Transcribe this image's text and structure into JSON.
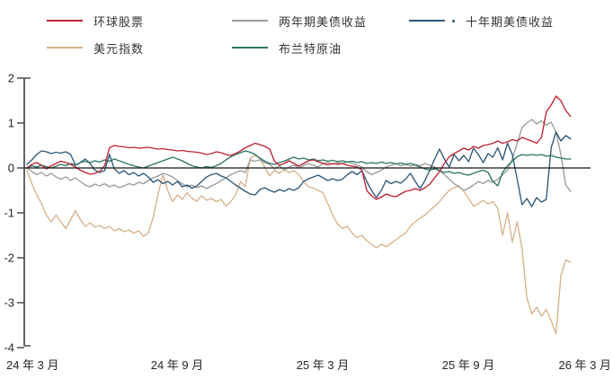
{
  "legend": {
    "items": [
      {
        "label": "环球股票",
        "color": "#bd2331",
        "column": 0,
        "style": "line",
        "key": "global-equities"
      },
      {
        "label": "美元指数",
        "color": "#d7b28c",
        "column": 0,
        "style": "line",
        "key": "usd-index"
      },
      {
        "label": "两年期美债收益",
        "color": "#9c9c9c",
        "column": 1,
        "style": "line",
        "key": "us-2y-treasury-yield"
      },
      {
        "label": "布兰特原油",
        "color": "#2b7466",
        "column": 1,
        "style": "line",
        "key": "brent-crude"
      },
      {
        "label": "十年期美债收益",
        "color": "#2e5878",
        "column": 2,
        "style": "line-dot",
        "key": "us-10y-treasury-yield"
      }
    ]
  },
  "chart_data": {
    "type": "line",
    "title": "",
    "xlabel": "",
    "ylabel": "",
    "grid": false,
    "zero_line": true,
    "legend_position": "top",
    "x_axis": {
      "labels": [
        "24 年 3 月",
        "24 年 9 月",
        "25 年 3 月",
        "25 年 9 月",
        "26 年 3 月"
      ],
      "label_months": [
        0,
        6,
        12,
        18,
        24
      ]
    },
    "y_axis": {
      "ticks": [
        2,
        1,
        0,
        -1,
        -2,
        -3,
        -4
      ],
      "ylim": [
        -4,
        2
      ]
    },
    "t_step_months": 0.2,
    "series": [
      {
        "name": "美元指数",
        "key": "usd-index",
        "color": "#d7b28c",
        "values": [
          -0.05,
          -0.35,
          -0.6,
          -0.8,
          -1.05,
          -1.2,
          -1.05,
          -1.2,
          -1.35,
          -1.15,
          -0.95,
          -1.15,
          -1.3,
          -1.22,
          -1.32,
          -1.28,
          -1.35,
          -1.3,
          -1.4,
          -1.35,
          -1.42,
          -1.38,
          -1.45,
          -1.4,
          -1.52,
          -1.45,
          -1.1,
          -0.6,
          -0.15,
          -0.5,
          -0.75,
          -0.6,
          -0.7,
          -0.55,
          -0.68,
          -0.74,
          -0.62,
          -0.72,
          -0.68,
          -0.75,
          -0.7,
          -0.85,
          -0.75,
          -0.6,
          -0.3,
          -0.42,
          0.22,
          0.28,
          0.2,
          0.02,
          -0.18,
          -0.05,
          -0.12,
          -0.04,
          -0.1,
          -0.06,
          -0.15,
          -0.3,
          -0.42,
          -0.45,
          -0.5,
          -0.55,
          -0.8,
          -1.05,
          -1.25,
          -1.35,
          -1.3,
          -1.45,
          -1.55,
          -1.5,
          -1.62,
          -1.7,
          -1.78,
          -1.7,
          -1.75,
          -1.68,
          -1.6,
          -1.52,
          -1.45,
          -1.3,
          -1.2,
          -1.12,
          -1.05,
          -0.95,
          -0.85,
          -0.75,
          -0.62,
          -0.5,
          -0.44,
          -0.4,
          -0.52,
          -0.68,
          -0.85,
          -0.8,
          -0.72,
          -0.8,
          -0.75,
          -0.9,
          -1.5,
          -1.0,
          -1.65,
          -1.2,
          -1.8,
          -2.9,
          -3.25,
          -3.1,
          -3.3,
          -3.15,
          -3.4,
          -3.7,
          -2.4,
          -2.05,
          -2.1
        ]
      },
      {
        "name": "两年期美债收益",
        "key": "us-2y-treasury-yield",
        "color": "#9c9c9c",
        "values": [
          0,
          -0.08,
          -0.15,
          -0.1,
          -0.18,
          -0.12,
          -0.2,
          -0.25,
          -0.2,
          -0.28,
          -0.22,
          -0.3,
          -0.38,
          -0.42,
          -0.36,
          -0.4,
          -0.35,
          -0.42,
          -0.38,
          -0.44,
          -0.4,
          -0.35,
          -0.38,
          -0.32,
          -0.35,
          -0.28,
          -0.22,
          -0.18,
          -0.12,
          -0.15,
          -0.2,
          -0.28,
          -0.35,
          -0.42,
          -0.38,
          -0.44,
          -0.4,
          -0.46,
          -0.4,
          -0.35,
          -0.28,
          -0.22,
          -0.15,
          -0.1,
          -0.06,
          -0.1,
          0.18,
          0.15,
          0.18,
          0.12,
          0.08,
          -0.02,
          0.05,
          -0.04,
          0.02,
          0.06,
          0,
          0.05,
          0.1,
          0.06,
          0.02,
          0.1,
          0.12,
          0.08,
          0.12,
          0.1,
          0.14,
          0.1,
          0.06,
          0.02,
          -0.08,
          -0.15,
          -0.1,
          -0.05,
          0.02,
          0.06,
          0.1,
          0.05,
          0.08,
          0.04,
          0.08,
          0.05,
          0.1,
          0.06,
          0.02,
          -0.05,
          -0.15,
          -0.25,
          -0.35,
          -0.42,
          -0.5,
          -0.45,
          -0.38,
          -0.3,
          -0.35,
          -0.28,
          -0.32,
          -0.25,
          -0.15,
          -0.05,
          0.2,
          0.55,
          0.9,
          1.0,
          1.08,
          0.98,
          1.05,
          0.95,
          1.02,
          0.8,
          0.3,
          -0.38,
          -0.52
        ]
      },
      {
        "name": "十年期美债收益",
        "key": "us-10y-treasury-yield",
        "color": "#2e5878",
        "values": [
          0.08,
          0.18,
          0.3,
          0.38,
          0.36,
          0.32,
          0.35,
          0.33,
          0.36,
          0.3,
          0.06,
          0.12,
          0.2,
          0.1,
          -0.05,
          -0.1,
          -0.06,
          0.3,
          -0.02,
          -0.12,
          -0.06,
          -0.15,
          -0.1,
          -0.18,
          -0.12,
          -0.2,
          -0.32,
          -0.26,
          -0.35,
          -0.3,
          -0.38,
          -0.3,
          -0.42,
          -0.38,
          -0.45,
          -0.4,
          -0.3,
          -0.2,
          -0.15,
          -0.12,
          -0.18,
          -0.22,
          -0.3,
          -0.38,
          -0.45,
          -0.52,
          -0.58,
          -0.6,
          -0.48,
          -0.44,
          -0.5,
          -0.54,
          -0.48,
          -0.52,
          -0.46,
          -0.5,
          -0.44,
          -0.3,
          -0.24,
          -0.2,
          -0.16,
          -0.22,
          -0.28,
          -0.24,
          -0.28,
          -0.25,
          -0.15,
          -0.08,
          -0.15,
          -0.06,
          -0.3,
          -0.5,
          -0.66,
          -0.5,
          -0.28,
          -0.35,
          -0.3,
          -0.34,
          -0.25,
          -0.12,
          -0.3,
          -0.46,
          -0.28,
          -0.05,
          0.2,
          0.42,
          0.2,
          0.02,
          0.3,
          0.16,
          0.28,
          0.14,
          0.44,
          0.3,
          0.12,
          0.32,
          0.24,
          0.45,
          0.18,
          0.55,
          0.3,
          -0.25,
          -0.82,
          -0.68,
          -0.86,
          -0.66,
          -0.76,
          -0.7,
          0.45,
          0.8,
          0.6,
          0.72,
          0.65
        ]
      },
      {
        "name": "布兰特原油",
        "key": "brent-crude",
        "color": "#2b7466",
        "values": [
          0,
          0.05,
          0.02,
          0.06,
          0.03,
          0,
          0.04,
          0.08,
          0.05,
          0.1,
          0.07,
          0.12,
          0.15,
          0.12,
          0.16,
          0.13,
          0.18,
          0.15,
          0.2,
          0.16,
          0.12,
          0.08,
          0.05,
          0.02,
          0,
          0.04,
          0.08,
          0.12,
          0.16,
          0.2,
          0.24,
          0.2,
          0.16,
          0.1,
          0.05,
          0.02,
          0,
          0.03,
          0.01,
          0.05,
          0.1,
          0.18,
          0.25,
          0.3,
          0.34,
          0.38,
          0.35,
          0.3,
          0.22,
          0.15,
          0.1,
          0.08,
          0.12,
          0.15,
          0.2,
          0.24,
          0.2,
          0.22,
          0.18,
          0.2,
          0.16,
          0.18,
          0.15,
          0.17,
          0.14,
          0.16,
          0.13,
          0.15,
          0.12,
          0.14,
          0.1,
          0.12,
          0.1,
          0.13,
          0.1,
          0.12,
          0.09,
          0.11,
          0.08,
          0.1,
          0.06,
          0.02,
          -0.02,
          -0.05,
          -0.02,
          -0.06,
          -0.1,
          -0.08,
          -0.12,
          -0.1,
          -0.14,
          -0.16,
          -0.12,
          -0.08,
          -0.05,
          -0.1,
          -0.3,
          -0.4,
          -0.1,
          0.05,
          0.15,
          0.25,
          0.3,
          0.28,
          0.3,
          0.28,
          0.3,
          0.26,
          0.28,
          0.24,
          0.22,
          0.2,
          0.2
        ]
      },
      {
        "name": "环球股票",
        "key": "global-equities",
        "color": "#bd2331",
        "values": [
          0,
          0.08,
          0.12,
          0.06,
          -0.02,
          0.05,
          0.1,
          0.15,
          0.12,
          0.08,
          0.02,
          -0.05,
          -0.1,
          -0.14,
          -0.12,
          -0.08,
          0.05,
          0.45,
          0.5,
          0.48,
          0.47,
          0.45,
          0.46,
          0.44,
          0.45,
          0.46,
          0.44,
          0.42,
          0.43,
          0.41,
          0.4,
          0.38,
          0.39,
          0.37,
          0.36,
          0.35,
          0.33,
          0.3,
          0.32,
          0.36,
          0.34,
          0.3,
          0.28,
          0.32,
          0.38,
          0.45,
          0.5,
          0.55,
          0.52,
          0.48,
          0.42,
          0.15,
          0.06,
          0.1,
          0.16,
          0.1,
          0.04,
          0.1,
          0.16,
          0.18,
          0.14,
          0.1,
          0.07,
          0.1,
          0.08,
          0.1,
          0.06,
          0.04,
          0.02,
          -0.04,
          -0.5,
          -0.62,
          -0.7,
          -0.65,
          -0.58,
          -0.62,
          -0.64,
          -0.58,
          -0.52,
          -0.5,
          -0.46,
          -0.5,
          -0.44,
          -0.36,
          -0.22,
          -0.08,
          0.1,
          0.25,
          0.32,
          0.38,
          0.44,
          0.4,
          0.48,
          0.44,
          0.5,
          0.52,
          0.55,
          0.6,
          0.55,
          0.58,
          0.63,
          0.6,
          0.68,
          0.64,
          0.6,
          0.55,
          0.68,
          1.25,
          1.4,
          1.6,
          1.5,
          1.28,
          1.15
        ]
      }
    ]
  }
}
